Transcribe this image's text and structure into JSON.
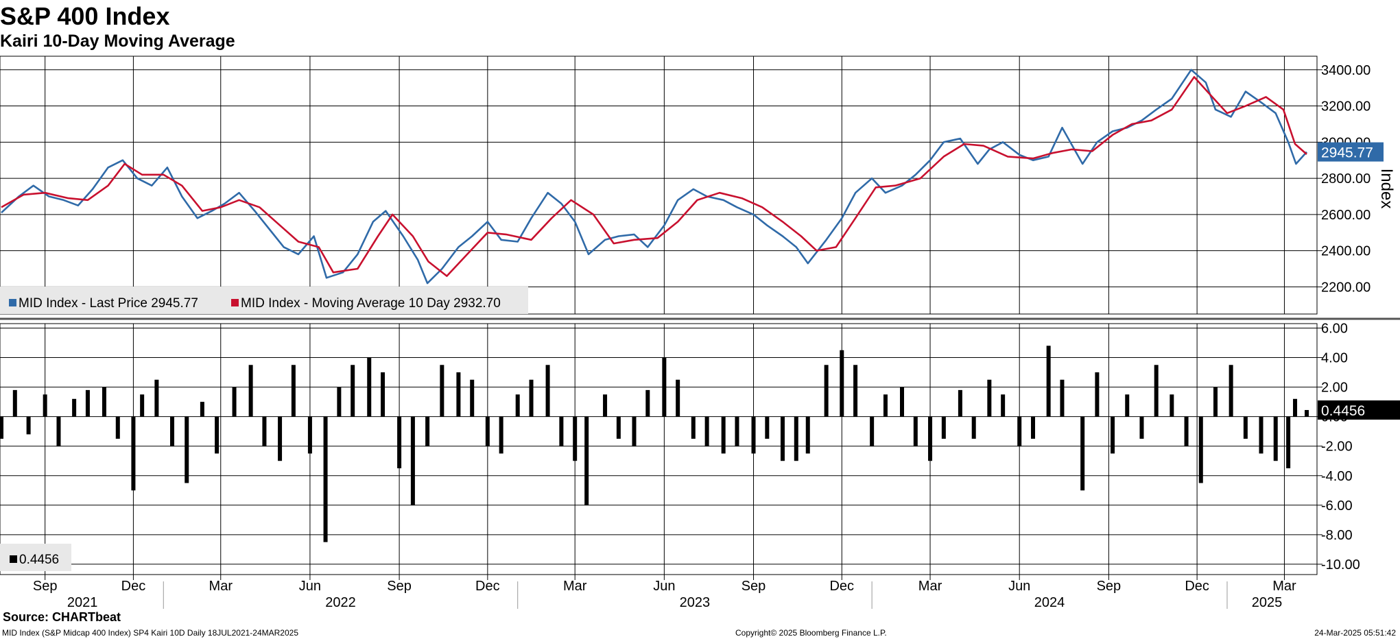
{
  "header": {
    "title": "S&P 400 Index",
    "subtitle": "Kairi 10-Day Moving Average"
  },
  "footer": {
    "source": "Source: CHARTbeat",
    "description": "MID Index (S&P Midcap 400 Index) SP4 Kairi 10D  Daily 18JUL2021-24MAR2025",
    "copyright": "Copyright© 2025 Bloomberg Finance L.P.",
    "timestamp": "24-Mar-2025 05:51:42"
  },
  "colors": {
    "price": "#2f6aa8",
    "moving_average": "#c8102e",
    "kairi_bars": "#000000",
    "grid": "#000000",
    "legend_bg": "#e8e8e8"
  },
  "chart_data": [
    {
      "type": "line",
      "panel": "top",
      "ylabel": "Index",
      "ylim": [
        2050,
        3475
      ],
      "y_ticks": [
        "2200.00",
        "2400.00",
        "2600.00",
        "2800.00",
        "3000.00",
        "3200.00",
        "3400.00"
      ],
      "grid": true,
      "legend": {
        "placement": "bottom-left",
        "entries": [
          "MID Index - Last Price 2945.77",
          "MID Index - Moving Average 10 Day 2932.70"
        ]
      },
      "last_value_label": "2945.77",
      "series": [
        {
          "name": "MID Index - Last Price",
          "color": "#2f6aa8",
          "x": [
            "2021-07-18",
            "2021-08-05",
            "2021-08-20",
            "2021-09-05",
            "2021-09-20",
            "2021-10-05",
            "2021-10-20",
            "2021-11-05",
            "2021-11-20",
            "2021-12-05",
            "2021-12-20",
            "2022-01-05",
            "2022-01-20",
            "2022-02-05",
            "2022-02-20",
            "2022-03-05",
            "2022-03-20",
            "2022-04-05",
            "2022-04-20",
            "2022-05-05",
            "2022-05-20",
            "2022-06-05",
            "2022-06-18",
            "2022-07-05",
            "2022-07-20",
            "2022-08-05",
            "2022-08-18",
            "2022-09-05",
            "2022-09-20",
            "2022-09-30",
            "2022-10-15",
            "2022-11-01",
            "2022-11-15",
            "2022-12-01",
            "2022-12-15",
            "2023-01-01",
            "2023-01-15",
            "2023-02-01",
            "2023-02-15",
            "2023-03-01",
            "2023-03-15",
            "2023-04-01",
            "2023-04-15",
            "2023-05-01",
            "2023-05-15",
            "2023-06-01",
            "2023-06-15",
            "2023-07-01",
            "2023-07-15",
            "2023-08-01",
            "2023-08-15",
            "2023-09-01",
            "2023-09-15",
            "2023-10-01",
            "2023-10-15",
            "2023-10-27",
            "2023-11-15",
            "2023-12-01",
            "2023-12-15",
            "2024-01-01",
            "2024-01-15",
            "2024-02-01",
            "2024-02-15",
            "2024-03-01",
            "2024-03-15",
            "2024-04-01",
            "2024-04-19",
            "2024-05-01",
            "2024-05-15",
            "2024-06-01",
            "2024-06-15",
            "2024-07-01",
            "2024-07-15",
            "2024-08-05",
            "2024-08-20",
            "2024-09-05",
            "2024-09-20",
            "2024-10-05",
            "2024-10-20",
            "2024-11-05",
            "2024-11-25",
            "2024-12-10",
            "2024-12-20",
            "2025-01-05",
            "2025-01-20",
            "2025-02-05",
            "2025-02-20",
            "2025-03-05",
            "2025-03-13",
            "2025-03-24"
          ],
          "values": [
            2610,
            2700,
            2760,
            2700,
            2680,
            2650,
            2740,
            2860,
            2900,
            2800,
            2760,
            2860,
            2700,
            2580,
            2620,
            2660,
            2720,
            2620,
            2520,
            2420,
            2380,
            2480,
            2250,
            2280,
            2380,
            2560,
            2620,
            2480,
            2350,
            2220,
            2300,
            2420,
            2480,
            2560,
            2460,
            2450,
            2580,
            2720,
            2660,
            2560,
            2380,
            2460,
            2480,
            2490,
            2420,
            2540,
            2680,
            2740,
            2700,
            2680,
            2640,
            2600,
            2540,
            2480,
            2420,
            2330,
            2460,
            2580,
            2720,
            2800,
            2720,
            2760,
            2820,
            2900,
            3000,
            3020,
            2880,
            2960,
            3000,
            2930,
            2900,
            2920,
            3080,
            2880,
            3000,
            3060,
            3080,
            3120,
            3180,
            3240,
            3400,
            3330,
            3180,
            3140,
            3280,
            3220,
            3160,
            3000,
            2880,
            2946
          ]
        },
        {
          "name": "MID Index - Moving Average 10 Day",
          "color": "#c8102e",
          "x": [
            "2021-07-18",
            "2021-08-10",
            "2021-09-01",
            "2021-09-25",
            "2021-10-15",
            "2021-11-05",
            "2021-11-22",
            "2021-12-10",
            "2022-01-01",
            "2022-01-20",
            "2022-02-10",
            "2022-03-01",
            "2022-03-20",
            "2022-04-10",
            "2022-05-01",
            "2022-05-20",
            "2022-06-10",
            "2022-06-25",
            "2022-07-20",
            "2022-08-10",
            "2022-08-25",
            "2022-09-15",
            "2022-10-01",
            "2022-10-20",
            "2022-11-10",
            "2022-12-01",
            "2022-12-20",
            "2023-01-15",
            "2023-02-05",
            "2023-02-25",
            "2023-03-20",
            "2023-04-10",
            "2023-05-01",
            "2023-05-25",
            "2023-06-15",
            "2023-07-05",
            "2023-07-28",
            "2023-08-20",
            "2023-09-10",
            "2023-10-01",
            "2023-10-20",
            "2023-11-05",
            "2023-11-25",
            "2023-12-15",
            "2024-01-05",
            "2024-01-25",
            "2024-02-20",
            "2024-03-15",
            "2024-04-05",
            "2024-04-25",
            "2024-05-20",
            "2024-06-15",
            "2024-07-05",
            "2024-07-25",
            "2024-08-15",
            "2024-09-05",
            "2024-09-25",
            "2024-10-15",
            "2024-11-05",
            "2024-11-28",
            "2024-12-15",
            "2025-01-01",
            "2025-01-20",
            "2025-02-10",
            "2025-02-28",
            "2025-03-12",
            "2025-03-24"
          ],
          "values": [
            2640,
            2710,
            2720,
            2690,
            2680,
            2760,
            2880,
            2820,
            2820,
            2760,
            2620,
            2640,
            2680,
            2640,
            2540,
            2450,
            2420,
            2280,
            2300,
            2480,
            2600,
            2480,
            2340,
            2260,
            2380,
            2500,
            2490,
            2460,
            2580,
            2680,
            2600,
            2440,
            2460,
            2470,
            2560,
            2680,
            2720,
            2690,
            2640,
            2560,
            2480,
            2400,
            2420,
            2580,
            2750,
            2760,
            2800,
            2920,
            2990,
            2980,
            2920,
            2910,
            2940,
            2960,
            2950,
            3040,
            3100,
            3120,
            3180,
            3360,
            3260,
            3160,
            3200,
            3250,
            3180,
            2990,
            2933
          ]
        }
      ]
    },
    {
      "type": "bar",
      "panel": "bottom",
      "ylim": [
        -10.7,
        6.3
      ],
      "y_ticks": [
        "-10.00",
        "-8.00",
        "-6.00",
        "-4.00",
        "-2.00",
        "0.00",
        "2.00",
        "4.00",
        "6.00"
      ],
      "grid": true,
      "legend": {
        "placement": "bottom-left",
        "entries": [
          "0.4456"
        ]
      },
      "last_value_label": "0.4456",
      "series": [
        {
          "color": "#000000",
          "x": [
            "2021-07-18",
            "2021-08-01",
            "2021-08-15",
            "2021-09-01",
            "2021-09-15",
            "2021-10-01",
            "2021-10-15",
            "2021-11-01",
            "2021-11-15",
            "2021-12-01",
            "2021-12-10",
            "2021-12-25",
            "2022-01-10",
            "2022-01-25",
            "2022-02-10",
            "2022-02-25",
            "2022-03-15",
            "2022-04-01",
            "2022-04-15",
            "2022-05-01",
            "2022-05-15",
            "2022-06-01",
            "2022-06-17",
            "2022-07-01",
            "2022-07-15",
            "2022-08-01",
            "2022-08-15",
            "2022-09-01",
            "2022-09-15",
            "2022-09-30",
            "2022-10-15",
            "2022-11-01",
            "2022-11-15",
            "2022-12-01",
            "2022-12-15",
            "2023-01-01",
            "2023-01-15",
            "2023-02-01",
            "2023-02-15",
            "2023-03-01",
            "2023-03-13",
            "2023-04-01",
            "2023-04-15",
            "2023-05-01",
            "2023-05-15",
            "2023-06-01",
            "2023-06-15",
            "2023-07-01",
            "2023-07-15",
            "2023-08-01",
            "2023-08-15",
            "2023-09-01",
            "2023-09-15",
            "2023-10-01",
            "2023-10-15",
            "2023-10-27",
            "2023-11-15",
            "2023-12-01",
            "2023-12-15",
            "2024-01-01",
            "2024-01-15",
            "2024-02-01",
            "2024-02-15",
            "2024-03-01",
            "2024-03-15",
            "2024-04-01",
            "2024-04-15",
            "2024-05-01",
            "2024-05-15",
            "2024-06-01",
            "2024-06-15",
            "2024-07-01",
            "2024-07-15",
            "2024-08-05",
            "2024-08-20",
            "2024-09-05",
            "2024-09-20",
            "2024-10-05",
            "2024-10-20",
            "2024-11-05",
            "2024-11-20",
            "2024-12-05",
            "2024-12-20",
            "2025-01-05",
            "2025-01-20",
            "2025-02-05",
            "2025-02-20",
            "2025-03-05",
            "2025-03-12",
            "2025-03-24"
          ],
          "values": [
            -1.5,
            1.8,
            -1.2,
            1.5,
            -2.0,
            1.2,
            1.8,
            2.0,
            -1.5,
            -5.0,
            1.5,
            2.5,
            -2.0,
            -4.5,
            1.0,
            -2.5,
            2.0,
            3.5,
            -2.0,
            -3.0,
            3.5,
            -2.5,
            -8.5,
            2.0,
            3.5,
            4.0,
            3.0,
            -3.5,
            -6.0,
            -2.0,
            3.5,
            3.0,
            2.5,
            -2.0,
            -2.5,
            1.5,
            2.5,
            3.5,
            -2.0,
            -3.0,
            -6.0,
            1.5,
            -1.5,
            -2.0,
            1.8,
            4.0,
            2.5,
            -1.5,
            -2.0,
            -2.5,
            -2.0,
            -2.5,
            -1.5,
            -3.0,
            -3.0,
            -2.5,
            3.5,
            4.5,
            3.5,
            -2.0,
            1.5,
            2.0,
            -2.0,
            -3.0,
            -1.5,
            1.8,
            -1.5,
            2.5,
            1.5,
            -2.0,
            -1.5,
            4.8,
            2.5,
            -5.0,
            3.0,
            -2.5,
            1.5,
            -1.5,
            3.5,
            1.5,
            -2.0,
            -4.5,
            2.0,
            3.5,
            -1.5,
            -2.5,
            -3.0,
            -3.5,
            1.2,
            0.4456
          ]
        }
      ]
    }
  ],
  "x_axis": {
    "months": [
      {
        "label": "Sep",
        "date": "2021-09-01"
      },
      {
        "label": "Dec",
        "date": "2021-12-01"
      },
      {
        "label": "Mar",
        "date": "2022-03-01"
      },
      {
        "label": "Jun",
        "date": "2022-06-01"
      },
      {
        "label": "Sep",
        "date": "2022-09-01"
      },
      {
        "label": "Dec",
        "date": "2022-12-01"
      },
      {
        "label": "Mar",
        "date": "2023-03-01"
      },
      {
        "label": "Jun",
        "date": "2023-06-01"
      },
      {
        "label": "Sep",
        "date": "2023-09-01"
      },
      {
        "label": "Dec",
        "date": "2023-12-01"
      },
      {
        "label": "Mar",
        "date": "2024-03-01"
      },
      {
        "label": "Jun",
        "date": "2024-06-01"
      },
      {
        "label": "Sep",
        "date": "2024-09-01"
      },
      {
        "label": "Dec",
        "date": "2024-12-01"
      },
      {
        "label": "Mar",
        "date": "2025-03-01"
      }
    ],
    "years": [
      {
        "label": "2021",
        "date": "2021-07-18",
        "end": "2022-01-01"
      },
      {
        "label": "2022",
        "date": "2022-01-01",
        "end": "2023-01-01"
      },
      {
        "label": "2023",
        "date": "2023-01-01",
        "end": "2024-01-01"
      },
      {
        "label": "2024",
        "date": "2024-01-01",
        "end": "2025-01-01"
      },
      {
        "label": "2025",
        "date": "2025-01-01",
        "end": "2025-03-24"
      }
    ],
    "start": "2021-07-18",
    "end": "2025-03-24"
  }
}
